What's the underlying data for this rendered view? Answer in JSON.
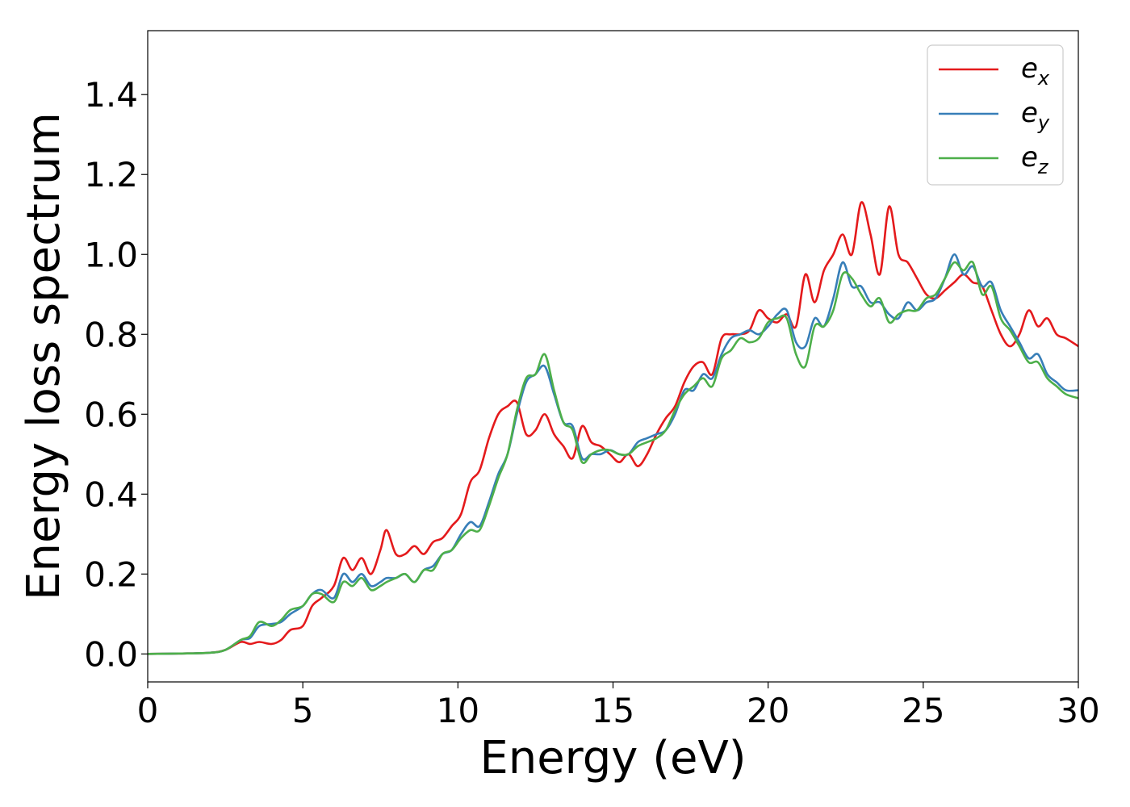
{
  "chart_data": {
    "type": "line",
    "title": "",
    "xlabel": "Energy (eV)",
    "ylabel": "Energy loss spectrum",
    "xlim": [
      0,
      30
    ],
    "ylim": [
      -0.07,
      1.56
    ],
    "xticks": [
      0,
      5,
      10,
      15,
      20,
      25,
      30
    ],
    "xtick_labels": [
      "0",
      "5",
      "10",
      "15",
      "20",
      "25",
      "30"
    ],
    "yticks": [
      0.0,
      0.2,
      0.4,
      0.6,
      0.8,
      1.0,
      1.2,
      1.4
    ],
    "ytick_labels": [
      "0.0",
      "0.2",
      "0.4",
      "0.6",
      "0.8",
      "1.0",
      "1.2",
      "1.4"
    ],
    "grid": false,
    "legend_position": "top-right",
    "series": [
      {
        "name": "e_x",
        "label_base": "e",
        "label_sub": "x",
        "color": "#e41a1c",
        "x": [
          0,
          1,
          2,
          2.5,
          3,
          3.3,
          3.6,
          4,
          4.3,
          4.6,
          5,
          5.3,
          5.6,
          6,
          6.3,
          6.6,
          6.9,
          7.2,
          7.5,
          7.7,
          8,
          8.3,
          8.6,
          8.9,
          9.2,
          9.5,
          9.8,
          10.1,
          10.4,
          10.7,
          11,
          11.3,
          11.6,
          11.9,
          12.2,
          12.5,
          12.8,
          13.1,
          13.4,
          13.7,
          14,
          14.3,
          14.6,
          14.9,
          15.2,
          15.5,
          15.8,
          16.1,
          16.4,
          16.7,
          17,
          17.3,
          17.6,
          17.9,
          18.2,
          18.5,
          18.8,
          19.1,
          19.4,
          19.7,
          20,
          20.3,
          20.6,
          20.9,
          21.2,
          21.5,
          21.8,
          22.1,
          22.4,
          22.7,
          23,
          23.3,
          23.6,
          23.9,
          24.2,
          24.5,
          24.8,
          25.1,
          25.4,
          25.7,
          26,
          26.3,
          26.6,
          26.9,
          27.2,
          27.5,
          27.8,
          28.1,
          28.4,
          28.7,
          29,
          29.3,
          29.6,
          30
        ],
        "y": [
          0,
          0.001,
          0.003,
          0.01,
          0.03,
          0.025,
          0.03,
          0.025,
          0.035,
          0.06,
          0.07,
          0.12,
          0.14,
          0.17,
          0.24,
          0.21,
          0.24,
          0.2,
          0.26,
          0.31,
          0.25,
          0.25,
          0.27,
          0.25,
          0.28,
          0.29,
          0.32,
          0.35,
          0.43,
          0.46,
          0.54,
          0.6,
          0.62,
          0.63,
          0.55,
          0.56,
          0.6,
          0.55,
          0.52,
          0.49,
          0.57,
          0.53,
          0.52,
          0.5,
          0.48,
          0.5,
          0.47,
          0.5,
          0.55,
          0.59,
          0.62,
          0.68,
          0.72,
          0.73,
          0.7,
          0.79,
          0.8,
          0.8,
          0.81,
          0.86,
          0.84,
          0.83,
          0.85,
          0.82,
          0.95,
          0.88,
          0.96,
          1.0,
          1.05,
          1.0,
          1.13,
          1.05,
          0.95,
          1.12,
          1.0,
          0.98,
          0.94,
          0.9,
          0.89,
          0.91,
          0.93,
          0.95,
          0.93,
          0.92,
          0.86,
          0.8,
          0.77,
          0.8,
          0.86,
          0.82,
          0.84,
          0.8,
          0.79,
          0.77
        ]
      },
      {
        "name": "e_y",
        "label_base": "e",
        "label_sub": "y",
        "color": "#377eb8",
        "x": [
          0,
          1,
          2,
          2.5,
          3,
          3.3,
          3.6,
          4,
          4.3,
          4.6,
          5,
          5.3,
          5.6,
          6,
          6.3,
          6.6,
          6.9,
          7.2,
          7.5,
          7.7,
          8,
          8.3,
          8.6,
          8.9,
          9.2,
          9.5,
          9.8,
          10.1,
          10.4,
          10.7,
          11,
          11.3,
          11.6,
          11.9,
          12.2,
          12.5,
          12.8,
          13.1,
          13.4,
          13.7,
          14,
          14.3,
          14.6,
          14.9,
          15.2,
          15.5,
          15.8,
          16.1,
          16.4,
          16.7,
          17,
          17.3,
          17.6,
          17.9,
          18.2,
          18.5,
          18.8,
          19.1,
          19.4,
          19.7,
          20,
          20.3,
          20.6,
          20.9,
          21.2,
          21.5,
          21.8,
          22.1,
          22.4,
          22.7,
          23,
          23.3,
          23.6,
          23.9,
          24.2,
          24.5,
          24.8,
          25.1,
          25.4,
          25.7,
          26,
          26.3,
          26.6,
          26.9,
          27.2,
          27.5,
          27.8,
          28.1,
          28.4,
          28.7,
          29,
          29.3,
          29.6,
          30
        ],
        "y": [
          0,
          0.001,
          0.003,
          0.01,
          0.035,
          0.04,
          0.07,
          0.075,
          0.08,
          0.1,
          0.12,
          0.15,
          0.16,
          0.14,
          0.2,
          0.18,
          0.2,
          0.17,
          0.18,
          0.19,
          0.19,
          0.2,
          0.18,
          0.21,
          0.22,
          0.25,
          0.26,
          0.3,
          0.33,
          0.32,
          0.38,
          0.45,
          0.5,
          0.6,
          0.68,
          0.7,
          0.72,
          0.65,
          0.58,
          0.57,
          0.49,
          0.5,
          0.5,
          0.51,
          0.5,
          0.5,
          0.53,
          0.54,
          0.55,
          0.56,
          0.6,
          0.66,
          0.66,
          0.7,
          0.69,
          0.75,
          0.79,
          0.8,
          0.81,
          0.8,
          0.82,
          0.85,
          0.86,
          0.78,
          0.77,
          0.84,
          0.82,
          0.89,
          0.98,
          0.92,
          0.92,
          0.88,
          0.88,
          0.85,
          0.84,
          0.88,
          0.86,
          0.88,
          0.89,
          0.94,
          1.0,
          0.95,
          0.97,
          0.92,
          0.93,
          0.86,
          0.82,
          0.78,
          0.74,
          0.75,
          0.7,
          0.68,
          0.66,
          0.66
        ]
      },
      {
        "name": "e_z",
        "label_base": "e",
        "label_sub": "z",
        "color": "#4daf4a",
        "x": [
          0,
          1,
          2,
          2.5,
          3,
          3.3,
          3.6,
          4,
          4.3,
          4.6,
          5,
          5.3,
          5.6,
          6,
          6.3,
          6.6,
          6.9,
          7.2,
          7.5,
          7.7,
          8,
          8.3,
          8.6,
          8.9,
          9.2,
          9.5,
          9.8,
          10.1,
          10.4,
          10.7,
          11,
          11.3,
          11.6,
          11.9,
          12.2,
          12.5,
          12.8,
          13.1,
          13.4,
          13.7,
          14,
          14.3,
          14.6,
          14.9,
          15.2,
          15.5,
          15.8,
          16.1,
          16.4,
          16.7,
          17,
          17.3,
          17.6,
          17.9,
          18.2,
          18.5,
          18.8,
          19.1,
          19.4,
          19.7,
          20,
          20.3,
          20.6,
          20.9,
          21.2,
          21.5,
          21.8,
          22.1,
          22.4,
          22.7,
          23,
          23.3,
          23.6,
          23.9,
          24.2,
          24.5,
          24.8,
          25.1,
          25.4,
          25.7,
          26,
          26.3,
          26.6,
          26.9,
          27.2,
          27.5,
          27.8,
          28.1,
          28.4,
          28.7,
          29,
          29.3,
          29.6,
          30
        ],
        "y": [
          0,
          0.001,
          0.003,
          0.01,
          0.035,
          0.045,
          0.08,
          0.07,
          0.085,
          0.11,
          0.12,
          0.15,
          0.15,
          0.13,
          0.18,
          0.17,
          0.19,
          0.16,
          0.17,
          0.18,
          0.19,
          0.2,
          0.18,
          0.21,
          0.21,
          0.25,
          0.26,
          0.29,
          0.31,
          0.31,
          0.37,
          0.44,
          0.5,
          0.61,
          0.69,
          0.7,
          0.75,
          0.66,
          0.58,
          0.56,
          0.48,
          0.5,
          0.51,
          0.51,
          0.5,
          0.5,
          0.52,
          0.53,
          0.54,
          0.56,
          0.61,
          0.65,
          0.67,
          0.69,
          0.67,
          0.74,
          0.76,
          0.79,
          0.78,
          0.79,
          0.83,
          0.84,
          0.84,
          0.75,
          0.72,
          0.82,
          0.82,
          0.86,
          0.95,
          0.94,
          0.9,
          0.87,
          0.89,
          0.83,
          0.85,
          0.86,
          0.86,
          0.89,
          0.9,
          0.94,
          0.98,
          0.96,
          0.98,
          0.9,
          0.92,
          0.84,
          0.81,
          0.77,
          0.73,
          0.73,
          0.69,
          0.67,
          0.65,
          0.64
        ]
      }
    ]
  }
}
